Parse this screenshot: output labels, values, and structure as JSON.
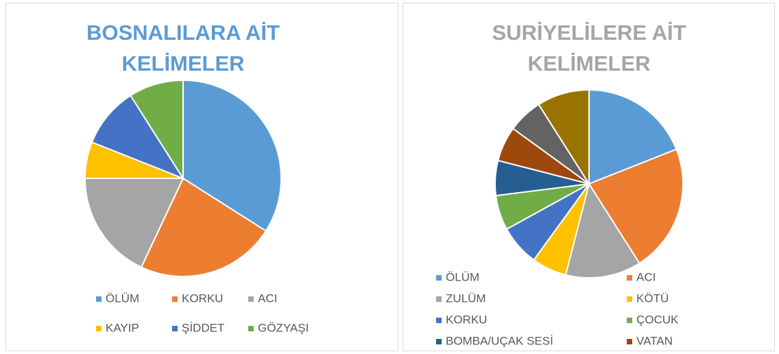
{
  "chart_data": [
    {
      "type": "pie",
      "title": "BOSNALILARA AİT KELİMELER",
      "title_color": "#5b9bd5",
      "categories": [
        "ÖLÜM",
        "KORKU",
        "ACI",
        "KAYIP",
        "ŞİDDET",
        "GÖZYAŞI"
      ],
      "values": [
        34,
        23,
        18,
        6,
        10,
        9
      ],
      "colors": [
        "#5b9bd5",
        "#ed7d31",
        "#a5a5a5",
        "#ffc000",
        "#4472c4",
        "#70ad47"
      ]
    },
    {
      "type": "pie",
      "title": "SURİYELİLERE AİT KELİMELER",
      "title_color": "#a5a5a5",
      "categories": [
        "ÖLÜM",
        "ACI",
        "ZULÜM",
        "KÖTÜ",
        "KORKU",
        "ÇOCUK",
        "BOMBA/UÇAK SESİ",
        "VATAN",
        null,
        null
      ],
      "values": [
        19,
        22,
        13,
        6,
        7,
        6,
        6,
        6,
        6,
        9
      ],
      "colors": [
        "#5b9bd5",
        "#ed7d31",
        "#a5a5a5",
        "#ffc000",
        "#4472c4",
        "#70ad47",
        "#255e91",
        "#9e480e",
        "#636363",
        "#997300"
      ]
    }
  ]
}
